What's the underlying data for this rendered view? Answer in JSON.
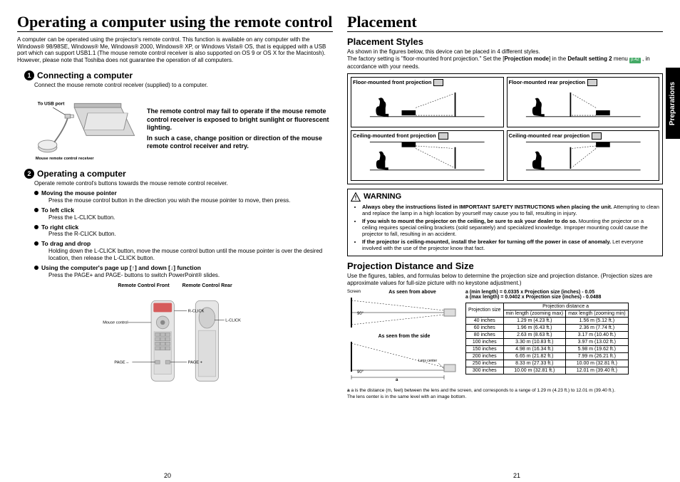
{
  "left": {
    "title": "Operating a computer using the remote control",
    "intro": "A computer can be operated using the projector's remote control. This function is available on any computer with the Windows® 98/98SE, Windows® Me, Windows® 2000, Windows® XP, or Windows Vista® OS, that is equipped with a USB port which can support USB1.1 (The mouse remote control receiver is also supported on OS 9 or OS X for the Macintosh). However, please note that Toshiba does not guarantee the operation of all computers.",
    "s1": {
      "num": "1",
      "title": "Connecting a computer",
      "text": "Connect the mouse remote control receiver (supplied) to a computer.",
      "usb_label": "To USB port",
      "recv_label": "Mouse remote control receiver",
      "warn1": "The remote control may fail to operate if the mouse remote control receiver is exposed to bright sunlight or fluorescent lighting.",
      "warn2": "In such a case, change position or direction of the mouse remote control receiver and retry."
    },
    "s2": {
      "num": "2",
      "title": "Operating a computer",
      "text": "Operate remote control's buttons towards the mouse remote control receiver.",
      "items": [
        {
          "t": "Moving the mouse pointer",
          "d": "Press the mouse control button in the direction you wish the mouse pointer to move, then press."
        },
        {
          "t": "To left click",
          "d": "Press the L-CLICK button."
        },
        {
          "t": "To right click",
          "d": "Press the R-CLICK button."
        },
        {
          "t": "To drag and drop",
          "d": "Holding down the L-CLICK button, move the mouse control button until the mouse pointer is over the desired location, then release the L-CLICK button."
        },
        {
          "t": "Using the computer's page up [↑] and down [↓] function",
          "d": "Press the PAGE+ and PAGE- buttons to switch PowerPoint® slides."
        }
      ],
      "fig_front": "Remote Control Front",
      "fig_rear": "Remote Control Rear",
      "lbl_rclick": "R-CLICK",
      "lbl_lclick": "L-CLICK",
      "lbl_mouse": "Mouse control",
      "lbl_pageminus": "PAGE –",
      "lbl_pageplus": "PAGE +"
    },
    "pagenum": "20"
  },
  "right": {
    "title": "Placement",
    "styles": {
      "title": "Placement Styles",
      "intro_a": "As shown in the figures below, this device can be placed in 4 different styles.",
      "intro_b": "The factory setting is \"floor-mounted front projection.\" Set the [",
      "intro_proj": "Projection mode",
      "intro_c": "] in the ",
      "intro_def": "Default setting 2",
      "intro_d": " menu ",
      "intro_pg": "p.42",
      "intro_e": " , in accordance with your needs.",
      "cells": [
        "Floor-mounted front projection",
        "Floor-mounted rear projection",
        "Ceiling-mounted front projection",
        "Ceiling-mounted rear projection"
      ]
    },
    "warning": {
      "head": "WARNING",
      "items": [
        {
          "b": "Always obey the instructions listed in IMPORTANT SAFETY INSTRUCTIONS when placing the unit.",
          "t": " Attempting to clean and replace the lamp in a high location by yourself may cause you to fall, resulting in injury."
        },
        {
          "b": "If you wish to mount the projector on the ceiling, be sure to ask your dealer to do so.",
          "t": " Mounting the projector on a ceiling requires special ceiling brackets (sold separately) and specialized knowledge. Improper mounting could cause the projector to fall, resulting in an accident."
        },
        {
          "b": "If the projector is ceiling-mounted, install the breaker for turning off the power in case of anomaly.",
          "t": " Let everyone involved with the use of the projector know that fact."
        }
      ]
    },
    "dist": {
      "title": "Projection Distance and Size",
      "intro": "Use the figures, tables, and formulas below to determine the projection size and projection distance. (Projection sizes are approximate values for full-size picture with no keystone adjustment.)",
      "f1": "a (min length) = 0.0335 x Projection size (inches) - 0.05",
      "f2": "a (max length) = 0.0402 x Projection size (inches) - 0.0488",
      "lbl_screen": "Screen",
      "lbl_above": "As seen from above",
      "lbl_side": "As seen from the side",
      "lbl_lens": "Lens center",
      "lbl_a": "a",
      "lbl_90a": "90°",
      "lbl_90b": "90°",
      "table": {
        "h_size": "Projection size",
        "h_dist": "Projection distance a",
        "h_min": "min length (zooming max)",
        "h_max": "max length (zooming min)",
        "rows": [
          [
            "40 inches",
            "1.29 m (4.23 ft.)",
            "1.56 m (5.12 ft.)"
          ],
          [
            "60 inches",
            "1.96 m (6.43 ft.)",
            "2.36 m (7.74 ft.)"
          ],
          [
            "80 inches",
            "2.63 m (8.63 ft.)",
            "3.17 m (10.40 ft.)"
          ],
          [
            "100 inches",
            "3.30 m (10.83 ft.)",
            "3.97 m (13.02 ft.)"
          ],
          [
            "150 inches",
            "4.98 m (16.34 ft.)",
            "5.98 m (19.62 ft.)"
          ],
          [
            "200 inches",
            "6.65 m (21.82 ft.)",
            "7.99 m (26.21 ft.)"
          ],
          [
            "250 inches",
            "8.33 m (27.33 ft.)",
            "10.00 m (32.81 ft.)"
          ],
          [
            "300 inches",
            "10.00 m (32.81 ft.)",
            "12.01 m (39.40 ft.)"
          ]
        ]
      },
      "foot1": "a is the distance (m, feet) between the lens and the screen, and corresponds to a range of 1.29 m (4.23 ft.) to 12.01 m (39.40 ft.).",
      "foot2": "The lens center is in the same level with an image bottom."
    },
    "pagenum": "21",
    "sidetab": "Preparations"
  }
}
